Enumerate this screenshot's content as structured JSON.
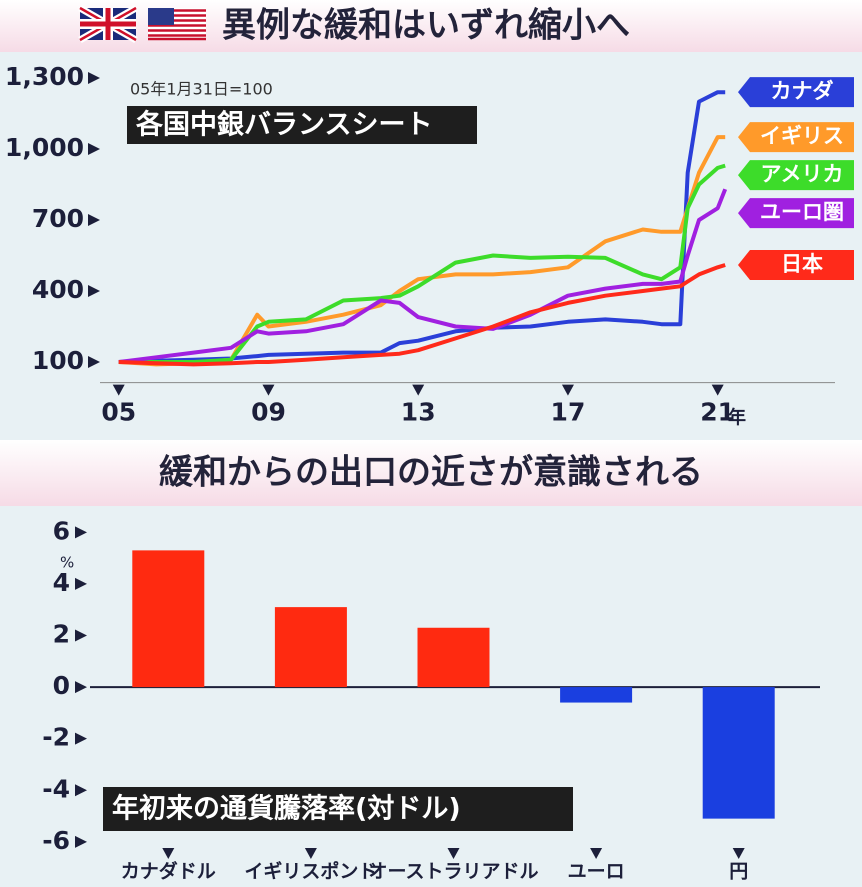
{
  "chart_data": [
    {
      "type": "line",
      "title": "異例な緩和はいずれ縮小へ",
      "subtitle": "各国中銀バランスシート",
      "note": "05年1月31日=100",
      "x_label": "年",
      "x": [
        2005,
        2006,
        2007,
        2008,
        2008.7,
        2009,
        2010,
        2011,
        2012,
        2012.5,
        2013,
        2014,
        2015,
        2016,
        2017,
        2018,
        2019,
        2019.5,
        2020,
        2020.2,
        2020.5,
        2021,
        2021.2
      ],
      "xlim": [
        2004.5,
        2024
      ],
      "xticks": [
        {
          "value": 2005,
          "label": "05"
        },
        {
          "value": 2009,
          "label": "09"
        },
        {
          "value": 2013,
          "label": "13"
        },
        {
          "value": 2017,
          "label": "17"
        },
        {
          "value": 2021,
          "label": "21"
        }
      ],
      "ylim": [
        30,
        1370
      ],
      "yticks": [
        100,
        400,
        700,
        {
          "value": 1000,
          "label": "1,000"
        },
        {
          "value": 1300,
          "label": "1,300"
        }
      ],
      "grid": false,
      "series": [
        {
          "name": "カナダ",
          "color": "#2a3fd8",
          "values": [
            100,
            105,
            110,
            115,
            125,
            130,
            135,
            140,
            140,
            180,
            190,
            230,
            245,
            250,
            270,
            280,
            270,
            260,
            260,
            900,
            1200,
            1240,
            1240
          ]
        },
        {
          "name": "イギリス",
          "color": "#ff9a2a",
          "values": [
            100,
            90,
            95,
            110,
            300,
            250,
            270,
            300,
            340,
            400,
            450,
            470,
            470,
            480,
            500,
            610,
            660,
            650,
            650,
            750,
            900,
            1050,
            1050
          ]
        },
        {
          "name": "アメリカ",
          "color": "#3ddc2a",
          "values": [
            100,
            100,
            100,
            110,
            250,
            270,
            280,
            360,
            370,
            380,
            420,
            520,
            550,
            540,
            545,
            540,
            470,
            450,
            500,
            750,
            850,
            920,
            930
          ]
        },
        {
          "name": "ユーロ圏",
          "color": "#a020e0",
          "values": [
            100,
            120,
            140,
            160,
            230,
            220,
            230,
            260,
            360,
            350,
            290,
            250,
            240,
            300,
            380,
            410,
            430,
            430,
            440,
            550,
            700,
            750,
            830
          ]
        },
        {
          "name": "日本",
          "color": "#ff2a1a",
          "values": [
            100,
            95,
            90,
            95,
            100,
            100,
            110,
            120,
            130,
            135,
            150,
            200,
            250,
            310,
            350,
            380,
            400,
            410,
            420,
            440,
            470,
            500,
            510
          ]
        }
      ]
    },
    {
      "type": "bar",
      "title": "緩和からの出口の近さが意識される",
      "subtitle": "年初来の通貨騰落率(対ドル)",
      "y_unit": "%",
      "categories": [
        "カナダドル",
        "イギリスポンド",
        "オーストラリアドル",
        "ユーロ",
        "円"
      ],
      "values": [
        5.3,
        3.1,
        2.3,
        -0.6,
        -5.1
      ],
      "colors": [
        "#ff2a10",
        "#ff2a10",
        "#ff2a10",
        "#1a3fe0",
        "#1a3fe0"
      ],
      "ylim": [
        -6.2,
        6.4
      ],
      "yticks": [
        -6,
        -4,
        -2,
        0,
        2,
        4,
        6
      ],
      "grid": false
    }
  ]
}
